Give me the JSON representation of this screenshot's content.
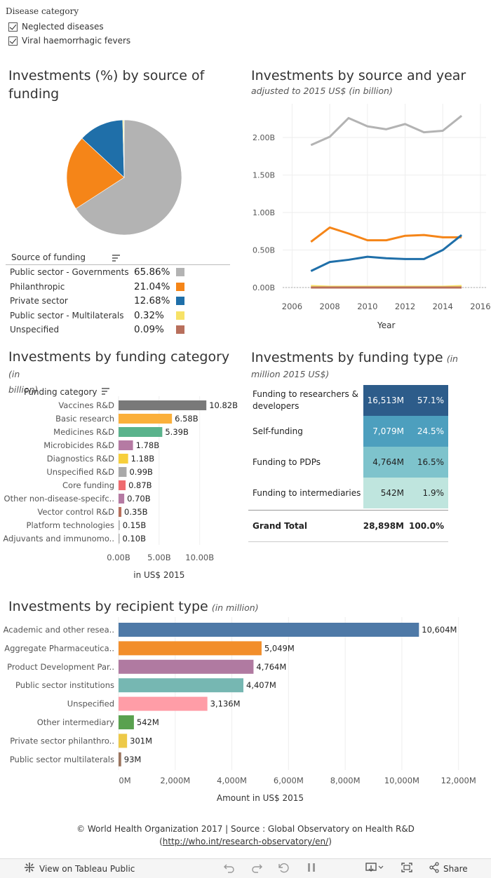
{
  "filter": {
    "title": "Disease category",
    "options": [
      {
        "label": "Neglected diseases",
        "checked": true
      },
      {
        "label": "Viral haemorrhagic fevers",
        "checked": true
      }
    ]
  },
  "pie_chart": {
    "title": "Investments (%) by source of funding",
    "title_line1": "Investments (%) by source of",
    "title_line2": "funding",
    "legend_header": "Source of funding",
    "chart_data": {
      "type": "pie",
      "categories": [
        "Public sector - Governments",
        "Philanthropic",
        "Private sector",
        "Public sector - Multilaterals",
        "Unspecified"
      ],
      "values": [
        65.86,
        21.04,
        12.68,
        0.32,
        0.09
      ],
      "value_labels": [
        "65.86%",
        "21.04%",
        "12.68%",
        "0.32%",
        "0.09%"
      ],
      "colors": [
        "#b3b3b3",
        "#f58518",
        "#1f6fa9",
        "#f7e267",
        "#b86f5c"
      ]
    }
  },
  "line_chart": {
    "title": "Investments by source and year",
    "subtitle": "adjusted to 2015 US$ (in billion)",
    "chart_data": {
      "type": "line",
      "x": [
        2007,
        2008,
        2009,
        2010,
        2011,
        2012,
        2013,
        2014,
        2015
      ],
      "xlabel": "Year",
      "x_ticks": [
        "2006",
        "2008",
        "2010",
        "2012",
        "2014",
        "2016"
      ],
      "x_range": [
        2005.5,
        2016.3
      ],
      "y_ticks": [
        "0.00B",
        "0.50B",
        "1.00B",
        "1.50B",
        "2.00B"
      ],
      "ylim": [
        0,
        2.45
      ],
      "series": [
        {
          "name": "Public sector - Governments",
          "color": "#b3b3b3",
          "values": [
            1.9,
            2.01,
            2.26,
            2.15,
            2.11,
            2.18,
            2.07,
            2.09,
            2.29
          ]
        },
        {
          "name": "Philanthropic",
          "color": "#f58518",
          "values": [
            0.61,
            0.8,
            0.72,
            0.63,
            0.63,
            0.69,
            0.7,
            0.67,
            0.67
          ]
        },
        {
          "name": "Private sector",
          "color": "#1f6fa9",
          "values": [
            0.22,
            0.34,
            0.37,
            0.41,
            0.39,
            0.38,
            0.38,
            0.5,
            0.7
          ]
        },
        {
          "name": "Public sector - Multilaterals",
          "color": "#f7e267",
          "values": [
            0.02,
            0.01,
            0.01,
            0.01,
            0.01,
            0.01,
            0.01,
            0.01,
            0.02
          ]
        },
        {
          "name": "Unspecified",
          "color": "#b86f5c",
          "values": [
            0.0,
            0.0,
            0.0,
            0.0,
            0.0,
            0.0,
            0.0,
            0.0,
            0.0
          ]
        }
      ]
    }
  },
  "category_chart": {
    "title": "Investments by funding category",
    "title_sub": "(in",
    "title_sub2": "billion)",
    "header": "Funding category",
    "chart_data": {
      "type": "bar",
      "categories": [
        "Vaccines R&D",
        "Basic research",
        "Medicines R&D",
        "Microbicides R&D",
        "Diagnostics R&D",
        "Unspecified R&D",
        "Core funding",
        "Other non-disease-specifc..",
        "Vector control R&D",
        "Platform technologies",
        "Adjuvants and immunomo.."
      ],
      "values": [
        10.82,
        6.58,
        5.39,
        1.78,
        1.18,
        0.99,
        0.87,
        0.7,
        0.35,
        0.15,
        0.1
      ],
      "value_labels": [
        "10.82B",
        "6.58B",
        "5.39B",
        "1.78B",
        "1.18B",
        "0.99B",
        "0.87B",
        "0.70B",
        "0.35B",
        "0.15B",
        "0.10B"
      ],
      "colors": [
        "#797979",
        "#fbb03b",
        "#5ab38c",
        "#b57aa3",
        "#f7cf3c",
        "#a9a9a9",
        "#ef6b6f",
        "#b57aa3",
        "#b86f5c",
        "#b3b3b3",
        "#b3b3b3"
      ],
      "x_ticks": [
        "0.00B",
        "5.00B",
        "10.00B"
      ],
      "xlim": [
        0,
        14
      ],
      "xlabel": "in US$ 2015"
    }
  },
  "funding_type_table": {
    "title": "Investments by funding type",
    "title_sub": "(in",
    "title_sub2": "million 2015 US$)",
    "chart_data": {
      "type": "table",
      "rows": [
        {
          "name": "Funding to researchers & developers",
          "amount": "16,513M",
          "pct": "57.1%",
          "bg": "#2d5c8a",
          "fg": "#ffffff"
        },
        {
          "name": "Self-funding",
          "amount": "7,079M",
          "pct": "24.5%",
          "bg": "#4d9fbe",
          "fg": "#ffffff"
        },
        {
          "name": "Funding to PDPs",
          "amount": "4,764M",
          "pct": "16.5%",
          "bg": "#7ec3cc",
          "fg": "#222222"
        },
        {
          "name": "Funding to intermediaries",
          "amount": "542M",
          "pct": "1.9%",
          "bg": "#bfe5de",
          "fg": "#222222"
        }
      ],
      "total": {
        "name": "Grand Total",
        "amount": "28,898M",
        "pct": "100.0%"
      }
    }
  },
  "recipient_chart": {
    "title": "Investments by recipient type",
    "title_sub": "(in million)",
    "chart_data": {
      "type": "bar",
      "categories": [
        "Academic and other resea..",
        "Aggregate Pharmaceutica..",
        "Product Development Par..",
        "Public sector institutions",
        "Unspecified",
        "Other intermediary",
        "Private sector philanthro..",
        "Public sector multilaterals"
      ],
      "values": [
        10604,
        5049,
        4764,
        4407,
        3136,
        542,
        301,
        93
      ],
      "value_labels": [
        "10,604M",
        "5,049M",
        "4,764M",
        "4,407M",
        "3,136M",
        "542M",
        "301M",
        "93M"
      ],
      "colors": [
        "#4e79a7",
        "#f28e2b",
        "#b07aa1",
        "#76b7b2",
        "#ff9da7",
        "#59a14f",
        "#edc948",
        "#9c755f"
      ],
      "x_ticks": [
        "0M",
        "2,000M",
        "4,000M",
        "6,000M",
        "8,000M",
        "10,000M",
        "12,000M"
      ],
      "xlim": [
        0,
        12800
      ],
      "xlabel": "Amount in US$ 2015"
    }
  },
  "footer": {
    "source_text": "© World Health Organization 2017 | Source : Global Observatory on Health R&D",
    "link_text": "http://who.int/research-observatory/en/",
    "link_open": "(",
    "link_close": ")"
  },
  "toolbar": {
    "view_label": "View on Tableau Public",
    "share_label": "Share",
    "icons": [
      "tableau-logo-icon",
      "undo-icon",
      "redo-icon",
      "revert-icon",
      "pause-icon",
      "download-icon",
      "fullscreen-icon",
      "share-icon"
    ]
  }
}
